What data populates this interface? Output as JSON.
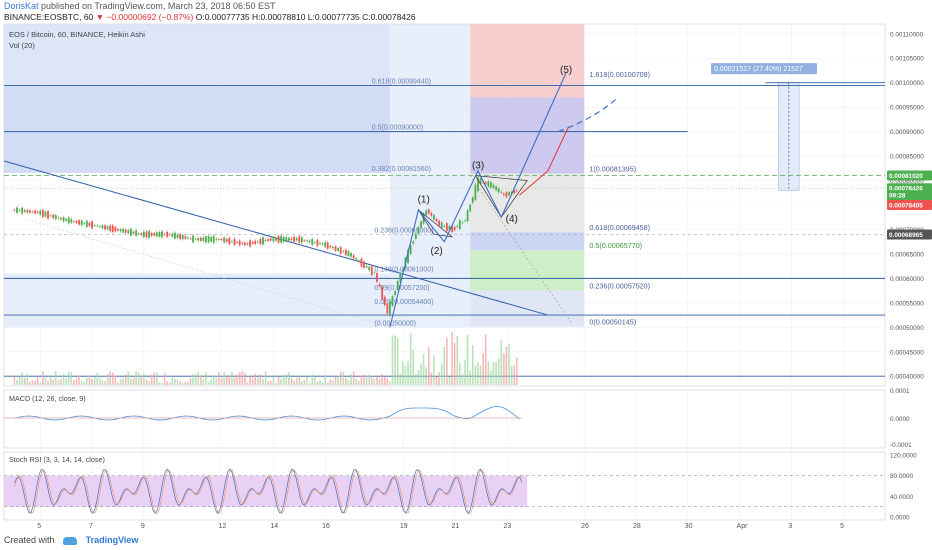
{
  "header": {
    "author": "DorisKat",
    "published": " published on TradingView.com, March 23, 2018 06:50 EST",
    "symbol_line_prefix": "BINANCE:EOSBTC, 60",
    "symbol_line_change": "▼ −0.00000692 (−0.87%)",
    "symbol_line_ohlc": "O:0.00077735 H:0.00078810 L:0.00077735 C:0.00078426"
  },
  "footer": {
    "created_with": "Created with",
    "brand": "TradingView"
  },
  "colors": {
    "up": "#4caf50",
    "down": "#ef5350",
    "fib_line": "#2e5ea8",
    "blue_zone": "#d6e2f7",
    "red_zone": "#f6c9c9",
    "green_zone": "#c9ecc1",
    "purple": "#b9b2e8",
    "rsi_fill": "#e3c6f2"
  },
  "chart_data": {
    "type": "candlestick",
    "title": "EOS / Bitcoin, 60, BINANCE, Heikin Ashi",
    "volume_label": "Vol (20)",
    "ylim": [
      0.00038,
      0.00112
    ],
    "y_ticks": [
      "0.00110000",
      "0.00105000",
      "0.00100000",
      "0.00095000",
      "0.00090000",
      "0.00085000",
      "0.00080000",
      "0.00075000",
      "0.00070000",
      "0.00065000",
      "0.00060000",
      "0.00055000",
      "0.00050000",
      "0.00045000",
      "0.00040000"
    ],
    "y_tick_values": [
      0.0011,
      0.00105,
      0.001,
      0.00095,
      0.0009,
      0.00085,
      0.0008,
      0.00075,
      0.0007,
      0.00065,
      0.0006,
      0.00055,
      0.0005,
      0.00045,
      0.0004
    ],
    "x_ticks": [
      {
        "label": "5",
        "day": 5
      },
      {
        "label": "7",
        "day": 7
      },
      {
        "label": "9",
        "day": 9
      },
      {
        "label": "12",
        "day": 12
      },
      {
        "label": "14",
        "day": 14
      },
      {
        "label": "16",
        "day": 16
      },
      {
        "label": "19",
        "day": 19
      },
      {
        "label": "21",
        "day": 21
      },
      {
        "label": "23",
        "day": 23
      },
      {
        "label": "26",
        "day": 26
      },
      {
        "label": "28",
        "day": 28
      },
      {
        "label": "30",
        "day": 30
      },
      {
        "label": "Apr",
        "day": 32
      },
      {
        "label": "3",
        "day": 34
      },
      {
        "label": "5",
        "day": 36
      }
    ],
    "price_series": [
      {
        "day": 4.0,
        "v": 0.00074
      },
      {
        "day": 5.0,
        "v": 0.000735
      },
      {
        "day": 6.0,
        "v": 0.00072
      },
      {
        "day": 7.0,
        "v": 0.00071
      },
      {
        "day": 8.0,
        "v": 0.0007
      },
      {
        "day": 9.0,
        "v": 0.00069
      },
      {
        "day": 10.0,
        "v": 0.00069
      },
      {
        "day": 11.0,
        "v": 0.00068
      },
      {
        "day": 12.0,
        "v": 0.00068
      },
      {
        "day": 13.0,
        "v": 0.00067
      },
      {
        "day": 14.0,
        "v": 0.00068
      },
      {
        "day": 15.0,
        "v": 0.00068
      },
      {
        "day": 16.0,
        "v": 0.00067
      },
      {
        "day": 17.0,
        "v": 0.00065
      },
      {
        "day": 18.0,
        "v": 0.00061
      },
      {
        "day": 18.5,
        "v": 0.00053
      },
      {
        "day": 19.0,
        "v": 0.00061
      },
      {
        "day": 19.5,
        "v": 0.00068
      },
      {
        "day": 20.0,
        "v": 0.00074
      },
      {
        "day": 20.5,
        "v": 0.00071
      },
      {
        "day": 21.0,
        "v": 0.0007
      },
      {
        "day": 21.5,
        "v": 0.00072
      },
      {
        "day": 22.0,
        "v": 0.0008
      },
      {
        "day": 22.5,
        "v": 0.00079
      },
      {
        "day": 23.0,
        "v": 0.00077
      },
      {
        "day": 23.5,
        "v": 0.00078
      }
    ],
    "fib_left": [
      {
        "label": "0.786(0.00113880)",
        "value": 0.0011388
      },
      {
        "label": "0.618(0.00099440)",
        "value": 0.0009944
      },
      {
        "label": "0.5(0.00090000)",
        "value": 0.0009
      },
      {
        "label": "0.382(0.00081560)",
        "value": 0.0008156
      },
      {
        "label": "0.236(0.00069000)",
        "value": 0.00069
      },
      {
        "label": "0.146(0.00061000)",
        "value": 0.00061
      },
      {
        "label": "0.09(0.00057200)",
        "value": 0.000572
      },
      {
        "label": "0.055(0.00054400)",
        "value": 0.000544
      },
      {
        "label": "(0.00050000)",
        "value": 0.0005
      }
    ],
    "fib_right": [
      {
        "label": "1.618(0.00100708)",
        "value": 0.00100708
      },
      {
        "label": "1(0.00081395)",
        "value": 0.00081395
      },
      {
        "label": "0.618(0.00069458)",
        "value": 0.00069458
      },
      {
        "label": "0.5(0.00065770)",
        "value": 0.0006577
      },
      {
        "label": "0.236(0.00057520)",
        "value": 0.0005752
      },
      {
        "label": "0(0.00050145)",
        "value": 0.00050145
      }
    ],
    "waves": [
      {
        "label": "(1)",
        "day": 19.8,
        "v": 0.000755
      },
      {
        "label": "(2)",
        "day": 20.3,
        "v": 0.00065
      },
      {
        "label": "(3)",
        "day": 21.9,
        "v": 0.000825
      },
      {
        "label": "(4)",
        "day": 23.2,
        "v": 0.000715
      },
      {
        "label": "(5)",
        "day": 25.3,
        "v": 0.00102
      }
    ],
    "measure_box": {
      "label": "0.00021527 (27.40%) 21527"
    },
    "price_tags": [
      {
        "label": "0.00081020",
        "value": 0.0008102,
        "color": "#4caf50"
      },
      {
        "label": "0.00078426",
        "value": 0.00078426,
        "color": "#4caf50"
      },
      {
        "label": "09:28",
        "value": 0.00077,
        "color": "#4caf50"
      },
      {
        "label": "0.00078405",
        "value": 0.00075,
        "color": "#ef5350"
      },
      {
        "label": "0.00068965",
        "value": 0.00068965,
        "color": "#555"
      }
    ],
    "macd": {
      "label": "MACD (12, 26, close, 9)",
      "ticks": [
        "0.0001",
        "0.0000",
        "-0.0001"
      ]
    },
    "stoch_rsi": {
      "label": "Stoch RSI (3, 3, 14, 14, close)",
      "ticks": [
        "120.0000",
        "80.0000",
        "40.0000",
        "0.0000"
      ],
      "tick_values": [
        120,
        80,
        40,
        0
      ]
    }
  }
}
